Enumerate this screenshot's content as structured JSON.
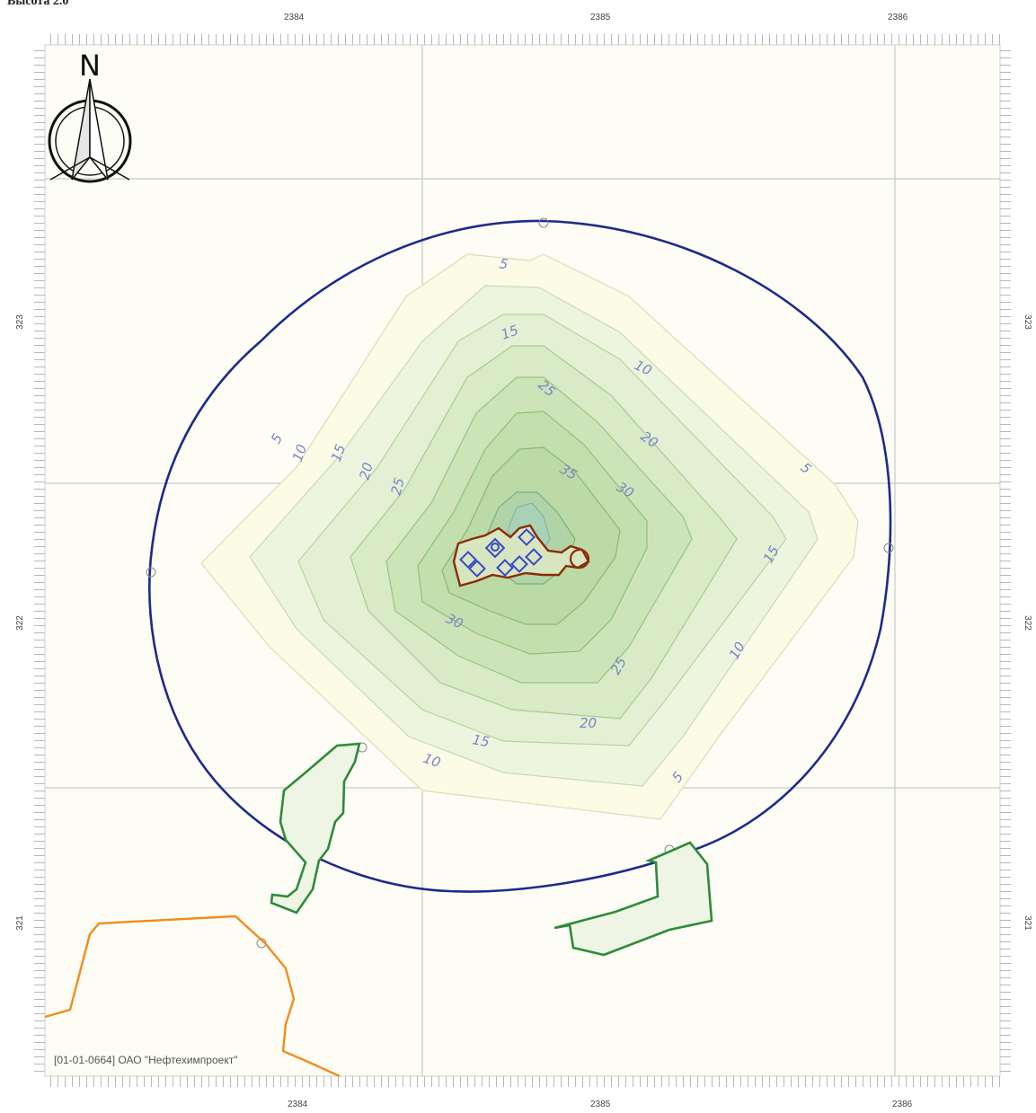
{
  "title": "Высота 2.0",
  "axes": {
    "x_ticks": [
      "2384",
      "2385",
      "2386"
    ],
    "y_ticks": [
      "323",
      "322",
      "321"
    ]
  },
  "north_label": "N",
  "footer": "[01-01-0664] ОАО \"Нефтехимпроект\"",
  "contour_labels": [
    "5",
    "10",
    "15",
    "20",
    "25",
    "30",
    "35"
  ],
  "colors": {
    "boundary": "#1f2a8a",
    "source": "#8b2c0a",
    "green_zone": "#2e8b3a",
    "orange_line": "#f28c1c"
  }
}
